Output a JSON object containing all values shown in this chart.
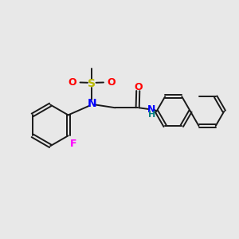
{
  "background_color": "#e8e8e8",
  "bond_color": "#1a1a1a",
  "N_color": "#0000ff",
  "O_color": "#ff0000",
  "S_color": "#b8b800",
  "F_color": "#ff00ff",
  "NH_color": "#008080",
  "figsize": [
    3.0,
    3.0
  ],
  "dpi": 100,
  "xlim": [
    0,
    10
  ],
  "ylim": [
    0,
    10
  ]
}
